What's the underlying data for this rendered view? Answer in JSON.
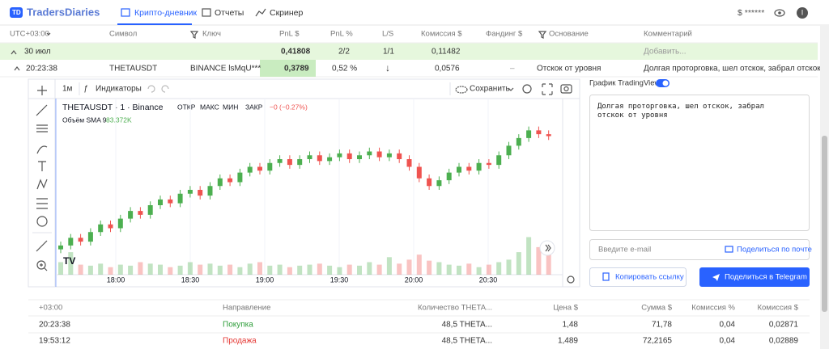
{
  "nav": {
    "logo": "TradersDiaries",
    "tabs": [
      "Крипто-дневник",
      "Отчеты",
      "Скринер"
    ],
    "balance": "$ ******",
    "user": "I"
  },
  "trades_table": {
    "columns": [
      "UTC+03:00",
      "Символ",
      "Ключ",
      "PnL $",
      "PnL %",
      "L/S",
      "Комиссия $",
      "Фандинг $",
      "Основание",
      "Комментарий"
    ],
    "group": {
      "date": "30 июл",
      "pnl_usd": "0,41808",
      "pnl_pct": "2/2",
      "ls": "1/1",
      "commission": "0,11482",
      "comment": "Добавить..."
    },
    "row": {
      "time": "20:23:38",
      "symbol": "THETAUSDT",
      "key": "BINANCE lsMqU***",
      "pnl_usd": "0,3789",
      "pnl_pct": "0,52 %",
      "ls": "↓",
      "commission": "0,0576",
      "funding": "–",
      "reason": "Отскок от уровня",
      "comment": "Долгая проторговка, шел отскок, забрал отскок о..."
    }
  },
  "chart_data": {
    "type": "candlestick",
    "toolbar": {
      "interval": "1м",
      "indicators": "Индикаторы",
      "save": "Сохранить"
    },
    "symbol_line": "THETAUSDT · 1 · Binance",
    "ohlc_labels": [
      "ОТКР",
      "МАКС",
      "МИН",
      "ЗАКР"
    ],
    "change": "−0 (−0.27%)",
    "volume_label": "Объём SMA 9",
    "volume_value": "83.372K",
    "xticks": [
      "18:00",
      "18:30",
      "19:00",
      "19:30",
      "20:00",
      "20:30"
    ],
    "open": [
      1.439,
      1.441,
      1.445,
      1.443,
      1.448,
      1.452,
      1.45,
      1.455,
      1.459,
      1.457,
      1.462,
      1.465,
      1.463,
      1.468,
      1.47,
      1.467,
      1.472,
      1.476,
      1.474,
      1.479,
      1.482,
      1.48,
      1.484,
      1.486,
      1.483,
      1.486,
      1.488,
      1.485,
      1.487,
      1.489,
      1.486,
      1.488,
      1.49,
      1.487,
      1.489,
      1.486,
      1.482,
      1.476,
      1.472,
      1.475,
      1.479,
      1.482,
      1.48,
      1.484,
      1.483,
      1.488,
      1.493,
      1.497,
      1.501,
      1.499
    ],
    "high": [
      1.443,
      1.447,
      1.447,
      1.45,
      1.454,
      1.454,
      1.457,
      1.461,
      1.461,
      1.464,
      1.467,
      1.467,
      1.47,
      1.472,
      1.472,
      1.474,
      1.478,
      1.478,
      1.481,
      1.484,
      1.484,
      1.486,
      1.488,
      1.488,
      1.488,
      1.49,
      1.49,
      1.489,
      1.491,
      1.491,
      1.49,
      1.492,
      1.492,
      1.491,
      1.491,
      1.488,
      1.484,
      1.478,
      1.477,
      1.481,
      1.484,
      1.484,
      1.486,
      1.486,
      1.49,
      1.495,
      1.499,
      1.503,
      1.503,
      1.501
    ],
    "low": [
      1.437,
      1.439,
      1.441,
      1.441,
      1.446,
      1.448,
      1.448,
      1.453,
      1.455,
      1.455,
      1.46,
      1.461,
      1.461,
      1.466,
      1.465,
      1.465,
      1.47,
      1.472,
      1.472,
      1.477,
      1.478,
      1.478,
      1.482,
      1.481,
      1.481,
      1.484,
      1.483,
      1.483,
      1.485,
      1.484,
      1.484,
      1.486,
      1.485,
      1.485,
      1.484,
      1.48,
      1.474,
      1.47,
      1.47,
      1.473,
      1.477,
      1.478,
      1.478,
      1.481,
      1.481,
      1.486,
      1.491,
      1.495,
      1.497,
      1.496
    ],
    "close": [
      1.441,
      1.445,
      1.443,
      1.448,
      1.452,
      1.45,
      1.455,
      1.459,
      1.457,
      1.462,
      1.465,
      1.463,
      1.468,
      1.47,
      1.467,
      1.472,
      1.476,
      1.474,
      1.479,
      1.482,
      1.48,
      1.484,
      1.486,
      1.483,
      1.486,
      1.488,
      1.485,
      1.487,
      1.489,
      1.486,
      1.488,
      1.49,
      1.487,
      1.489,
      1.486,
      1.482,
      1.476,
      1.472,
      1.475,
      1.479,
      1.482,
      1.48,
      1.484,
      1.483,
      1.488,
      1.493,
      1.497,
      1.501,
      1.499,
      1.498
    ],
    "volume": [
      25,
      45,
      20,
      18,
      22,
      15,
      20,
      18,
      25,
      22,
      20,
      15,
      18,
      25,
      20,
      22,
      18,
      20,
      15,
      22,
      25,
      18,
      20,
      15,
      18,
      20,
      22,
      18,
      15,
      20,
      18,
      25,
      20,
      35,
      22,
      30,
      40,
      28,
      25,
      20,
      18,
      22,
      15,
      20,
      25,
      30,
      45,
      75,
      55,
      40
    ],
    "ylim": [
      1.43,
      1.51
    ],
    "volume_ylim": [
      0,
      100
    ],
    "up_color": "#4caf50",
    "down_color": "#ef5350"
  },
  "side_panel": {
    "toggle_label": "График TradingView",
    "comment": "Долгая проторговка, шел отскок, забрал отскок от уровня",
    "email_placeholder": "Введите e-mail",
    "share_email": "Поделиться по почте",
    "copy_link": "Копировать ссылку",
    "share_telegram": "Поделиться в Telegram"
  },
  "executions_table": {
    "columns": [
      "+03:00",
      "Направление",
      "Количество THETA...",
      "Цена $",
      "Сумма $",
      "Комиссия %",
      "Комиссия $"
    ],
    "rows": [
      [
        "20:23:38",
        "Покупка",
        "48,5 THETA...",
        "1,48",
        "71,78",
        "0,04",
        "0,02871"
      ],
      [
        "19:53:12",
        "Продажа",
        "48,5 THETA...",
        "1,489",
        "72,2165",
        "0,04",
        "0,02889"
      ]
    ]
  }
}
